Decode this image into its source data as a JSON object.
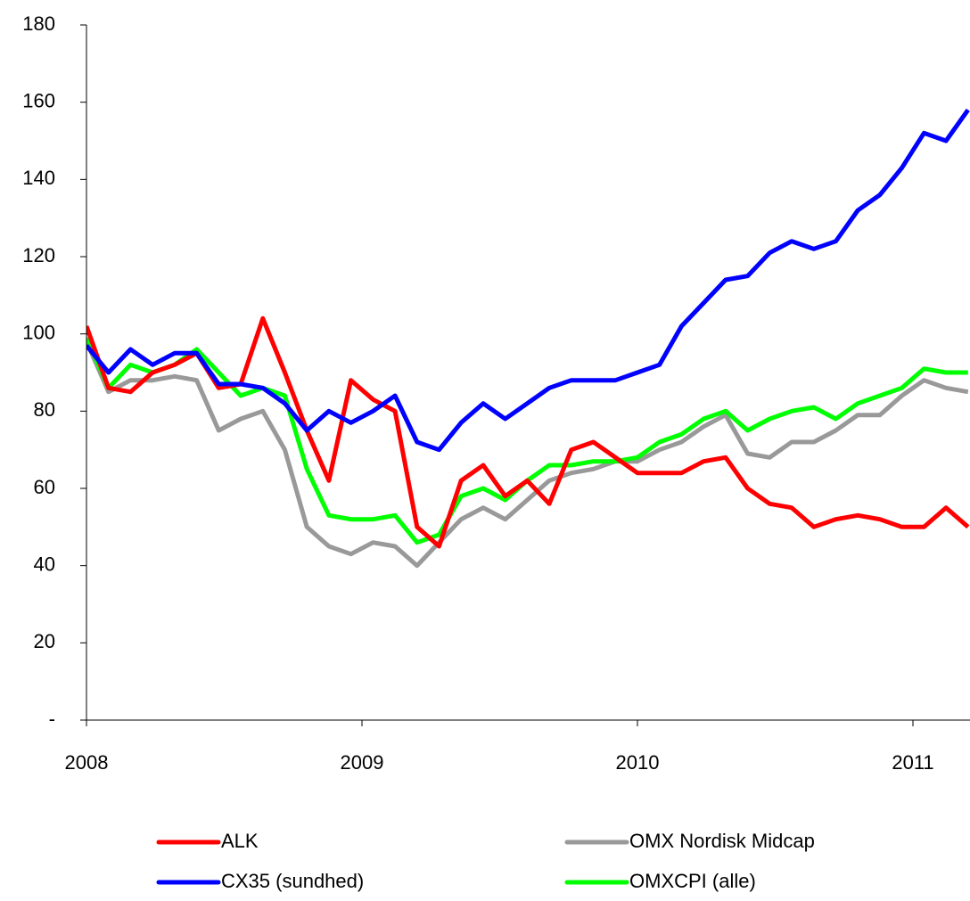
{
  "chart_data": {
    "type": "line",
    "x": [
      2008.0,
      2008.08,
      2008.16,
      2008.24,
      2008.32,
      2008.4,
      2008.48,
      2008.56,
      2008.64,
      2008.72,
      2008.8,
      2008.88,
      2008.96,
      2009.04,
      2009.12,
      2009.2,
      2009.28,
      2009.36,
      2009.44,
      2009.52,
      2009.6,
      2009.68,
      2009.76,
      2009.84,
      2009.92,
      2010.0,
      2010.08,
      2010.16,
      2010.24,
      2010.32,
      2010.4,
      2010.48,
      2010.56,
      2010.64,
      2010.72,
      2010.8,
      2010.88,
      2010.96,
      2011.04,
      2011.12,
      2011.2
    ],
    "series": [
      {
        "name": "ALK",
        "color": "#ff0000",
        "values": [
          102,
          86,
          85,
          90,
          92,
          95,
          86,
          87,
          104,
          90,
          75,
          62,
          88,
          83,
          80,
          50,
          45,
          62,
          66,
          58,
          62,
          56,
          70,
          72,
          68,
          64,
          64,
          64,
          67,
          68,
          60,
          56,
          55,
          50,
          52,
          53,
          52,
          50,
          50,
          55,
          50
        ]
      },
      {
        "name": "OMX Nordisk Midcap",
        "color": "#999999",
        "values": [
          98,
          85,
          88,
          88,
          89,
          88,
          75,
          78,
          80,
          70,
          50,
          45,
          43,
          46,
          45,
          40,
          46,
          52,
          55,
          52,
          57,
          62,
          64,
          65,
          67,
          67,
          70,
          72,
          76,
          79,
          69,
          68,
          72,
          72,
          75,
          79,
          79,
          84,
          88,
          86,
          85
        ]
      },
      {
        "name": "CX35 (sundhed)",
        "color": "#0000ff",
        "values": [
          97,
          90,
          96,
          92,
          95,
          95,
          87,
          87,
          86,
          82,
          75,
          80,
          77,
          80,
          84,
          72,
          70,
          77,
          82,
          78,
          82,
          86,
          88,
          88,
          88,
          90,
          92,
          102,
          108,
          114,
          115,
          121,
          124,
          122,
          124,
          132,
          136,
          143,
          152,
          150,
          158
        ]
      },
      {
        "name": "OMXCPI (alle)",
        "color": "#00ff00",
        "values": [
          99,
          86,
          92,
          90,
          92,
          96,
          90,
          84,
          86,
          84,
          65,
          53,
          52,
          52,
          53,
          46,
          48,
          58,
          60,
          57,
          62,
          66,
          66,
          67,
          67,
          68,
          72,
          74,
          78,
          80,
          75,
          78,
          80,
          81,
          78,
          82,
          84,
          86,
          91,
          90,
          90
        ]
      }
    ],
    "xlim": [
      2008,
      2011.19
    ],
    "xticks": [
      2008,
      2009,
      2010,
      2011
    ],
    "ylim": [
      0,
      180
    ],
    "yticks": [
      {
        "value": 0,
        "label": "-"
      },
      20,
      40,
      60,
      80,
      100,
      120,
      140,
      160,
      180
    ]
  }
}
